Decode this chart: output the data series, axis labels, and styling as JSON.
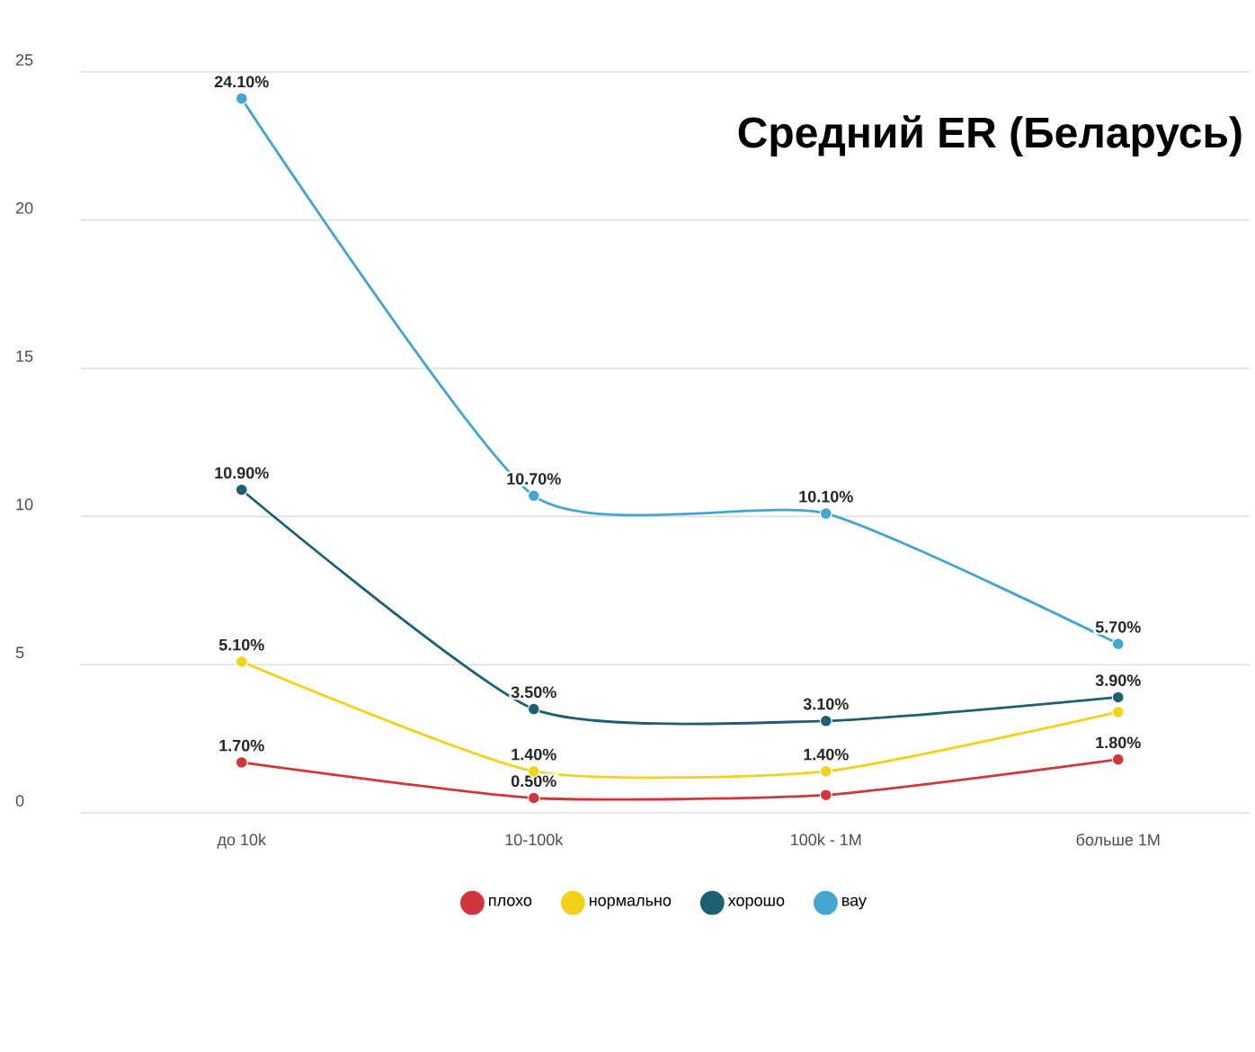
{
  "chart_data": {
    "type": "line",
    "title": "Средний ER (Беларусь)",
    "categories": [
      "до 10k",
      "10-100k",
      "100k - 1M",
      "больше 1M"
    ],
    "series": [
      {
        "name": "плохо",
        "color": "#d0363b",
        "values": [
          1.7,
          0.5,
          0.6,
          1.8
        ],
        "value_labels": [
          "1.70%",
          "0.50%",
          null,
          "1.80%"
        ]
      },
      {
        "name": "нормально",
        "color": "#f2d21b",
        "values": [
          5.1,
          1.4,
          1.4,
          3.4
        ],
        "value_labels": [
          "5.10%",
          "1.40%",
          "1.40%",
          null
        ]
      },
      {
        "name": "хорошо",
        "color": "#1f5f74",
        "values": [
          10.9,
          3.5,
          3.1,
          3.9
        ],
        "value_labels": [
          "10.90%",
          "3.50%",
          "3.10%",
          "3.90%"
        ]
      },
      {
        "name": "вау",
        "color": "#44a6d0",
        "values": [
          24.1,
          10.7,
          10.1,
          5.7
        ],
        "value_labels": [
          "24.10%",
          "10.70%",
          "10.10%",
          "5.70%"
        ]
      }
    ],
    "ylim": [
      0,
      25
    ],
    "yticks": [
      0,
      5,
      10,
      15,
      20,
      25
    ],
    "grid": "y",
    "legend": "bottom",
    "marker": "circle",
    "line_style": "solid"
  }
}
